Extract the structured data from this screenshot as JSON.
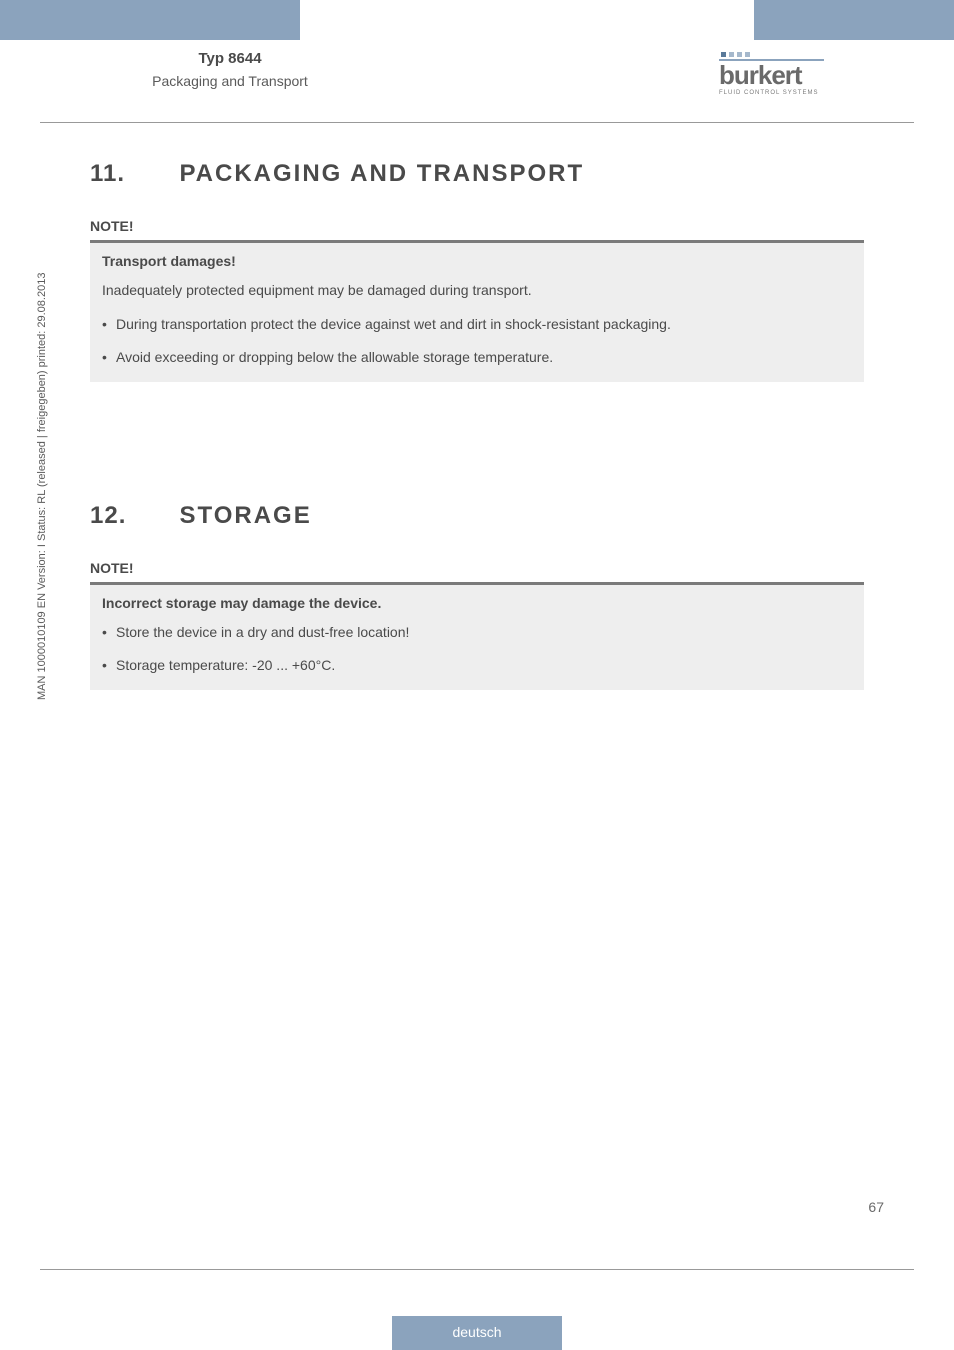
{
  "header": {
    "title": "Typ 8644",
    "subtitle": "Packaging and Transport"
  },
  "logo": {
    "text": "burkert",
    "subtext": "FLUID CONTROL SYSTEMS",
    "dot_color_1": "#5a7a9a",
    "dot_color_2": "#a5b8cc",
    "line_color": "#8ba3bd"
  },
  "section1": {
    "number": "11.",
    "title": "PACKAGING AND TRANSPORT",
    "note_label": "NOTE!",
    "note_heading": "Transport damages!",
    "note_text": "Inadequately protected equipment may be damaged during transport.",
    "bullets": [
      "During transportation protect the device against wet and dirt in shock-resistant packaging.",
      "Avoid exceeding or dropping below the allowable storage temperature."
    ]
  },
  "section2": {
    "number": "12.",
    "title": "STORAGE",
    "note_label": "NOTE!",
    "note_heading": "Incorrect storage may damage the device.",
    "bullets": [
      "Store the device in a dry and dust-free location!",
      "Storage temperature: -20 ... +60°C."
    ]
  },
  "side_text": "MAN 1000010109 EN Version: I Status: RL (released | freigegeben) printed: 29.08.2013",
  "page_number": "67",
  "language_tab": "deutsch",
  "colors": {
    "accent": "#8ba3bd",
    "note_bg": "#eeeeee",
    "note_border": "#7a7a7a",
    "text": "#4a4a4a"
  }
}
